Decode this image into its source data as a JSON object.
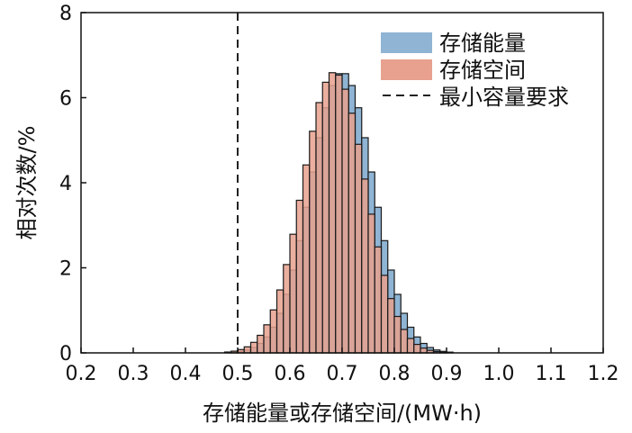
{
  "chart_data": {
    "type": "histogram",
    "title": "",
    "xlabel": "存储能量或存储空间/(MW·h)",
    "ylabel": "相对次数/%",
    "xlim": [
      0.2,
      1.2
    ],
    "ylim": [
      0,
      8
    ],
    "xticks": [
      "0.2",
      "0.3",
      "0.4",
      "0.5",
      "0.6",
      "0.7",
      "0.8",
      "0.9",
      "1.0",
      "1.1",
      "1.2"
    ],
    "yticks": [
      "0",
      "2",
      "4",
      "6",
      "8"
    ],
    "xtick_values": [
      0.2,
      0.3,
      0.4,
      0.5,
      0.6,
      0.7,
      0.8,
      0.9,
      1.0,
      1.1,
      1.2
    ],
    "ytick_values": [
      0,
      2,
      4,
      6,
      8
    ],
    "bin_width": 0.0125,
    "reference_line": {
      "name": "最小容量要求",
      "x": 0.5,
      "style": "dashed"
    },
    "legend": {
      "position": "top-right",
      "entries": [
        "存储能量",
        "存储空间",
        "最小容量要求"
      ]
    },
    "series": [
      {
        "name": "存储能量",
        "color": "#8fb4d4",
        "mean": 0.7,
        "sd": 0.06,
        "peak": 6.6,
        "range": [
          0.4,
          0.95
        ]
      },
      {
        "name": "存储空间",
        "color": "#e7a18e",
        "mean": 0.685,
        "sd": 0.06,
        "peak": 6.6,
        "range": [
          0.4,
          0.92
        ]
      }
    ]
  }
}
